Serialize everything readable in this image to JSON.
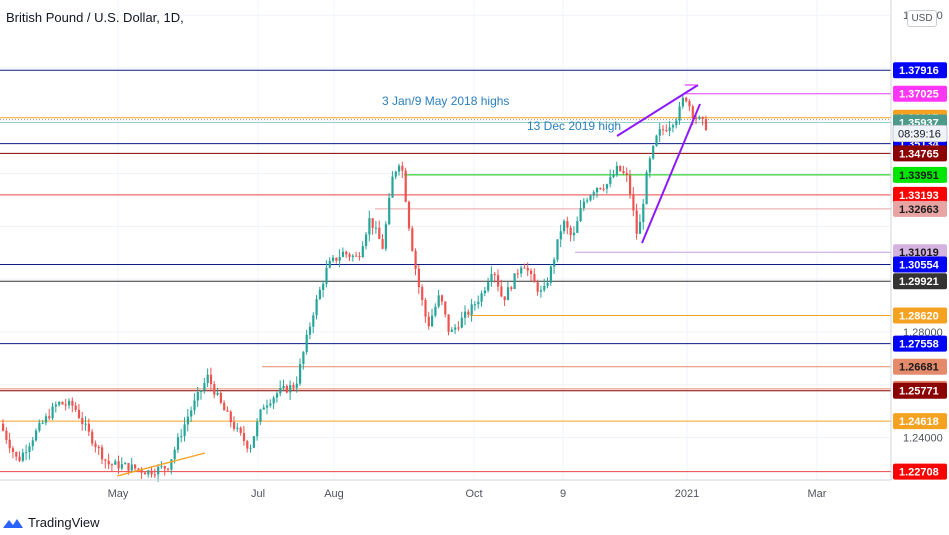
{
  "symbol_title": "British Pound / U.S. Dollar, 1D,",
  "currency": "USD",
  "brand": "TradingView",
  "chart_data": {
    "type": "candlestick",
    "instrument": "British Pound / U.S. Dollar",
    "interval": "1D",
    "ylim": [
      1.2254,
      1.4035
    ],
    "x_tick_labels": [
      "May",
      "Jul",
      "Aug",
      "Oct",
      "9",
      "2021",
      "Mar"
    ],
    "y_tick_labels": [
      "1.40000",
      "1.28000",
      "1.24000"
    ],
    "price_levels": [
      {
        "value": "1.37916",
        "color": "#0000ff",
        "line": "#0b1e86"
      },
      {
        "value": "1.37025",
        "color": "#ff36f5",
        "line": "#e040fb"
      },
      {
        "value": "1.36117",
        "color": "#f6a221",
        "line": "#f6a221"
      },
      {
        "value": "1.35937",
        "color": "#4c9a8a",
        "line": "#9ad0c5"
      },
      {
        "value": "1.35134",
        "color": "#0000ff",
        "line": "#0b1e86"
      },
      {
        "value": "1.34765",
        "color": "#8b0000",
        "line": "#8b0000"
      },
      {
        "value": "1.33951",
        "color": "#00e600",
        "line": "#00c800"
      },
      {
        "value": "1.33193",
        "color": "#ff0000",
        "line": "#ee4444"
      },
      {
        "value": "1.32663",
        "color": "#e8a3a3",
        "line": "#e8a3a3"
      },
      {
        "value": "1.31019",
        "color": "#d4b3e0",
        "line": "#c8a0e0"
      },
      {
        "value": "1.30554",
        "color": "#0000ff",
        "line": "#0b1e86"
      },
      {
        "value": "1.29921",
        "color": "#333333",
        "line": "#333333"
      },
      {
        "value": "1.28620",
        "color": "#f6a221",
        "line": "#f6a221"
      },
      {
        "value": "1.27558",
        "color": "#0000ff",
        "line": "#0b1e86"
      },
      {
        "value": "1.26681",
        "color": "#e58a6b",
        "line": "#e58a6b"
      },
      {
        "value": "1.25843",
        "color": "#e58a6b",
        "line": "#e58a6b"
      },
      {
        "value": "1.25771",
        "color": "#8b0000",
        "line": "#8b0000"
      },
      {
        "value": "1.24618",
        "color": "#f6a221",
        "line": "#f6a221"
      },
      {
        "value": "1.22708",
        "color": "#ff0000",
        "line": "#ee4444"
      }
    ],
    "countdown_label": "08:39:16",
    "last_price": 1.35937,
    "annotations": [
      "3 Jan/9 May 2018 highs",
      "13 Dec 2019 high"
    ],
    "candle_colors": {
      "up": "#26a69a",
      "down": "#ef5350"
    },
    "series_ohlc": "randomized candle path from ~1.235 (late Mar 2020) to ~1.36 (mid Jan 2021)"
  }
}
